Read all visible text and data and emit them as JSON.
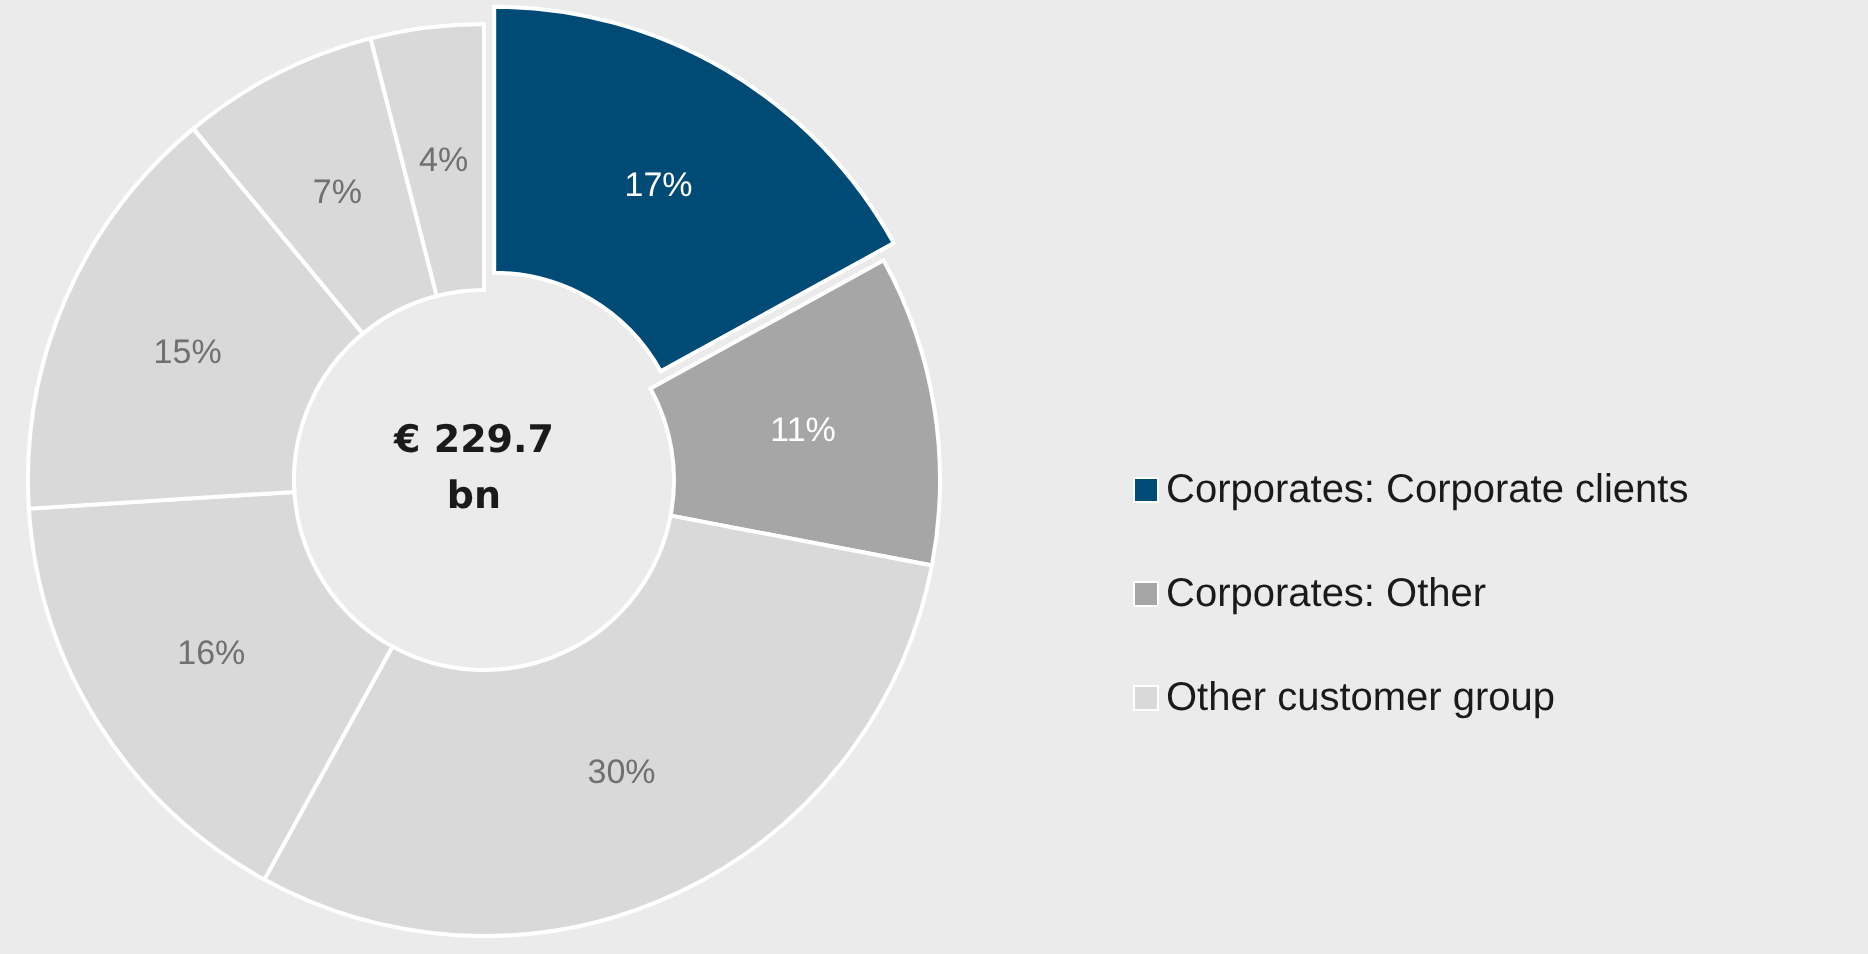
{
  "chart_data": {
    "type": "donut",
    "categories": [
      "Corporates: Corporate clients",
      "Corporates: Other",
      "Other customer group",
      null,
      null,
      null,
      null
    ],
    "values": [
      17,
      11,
      30,
      16,
      15,
      7,
      4
    ],
    "colors": [
      "#004b76",
      "#a6a6a6",
      "#d9d9d9",
      "#d9d9d9",
      "#d9d9d9",
      "#d9d9d9",
      "#d9d9d9"
    ],
    "value_labels": [
      "17%",
      "11%",
      "30%",
      "16%",
      "15%",
      "7%",
      "4%"
    ],
    "annotations": [
      "€ 229.7 bn"
    ],
    "legend": "right"
  }
}
